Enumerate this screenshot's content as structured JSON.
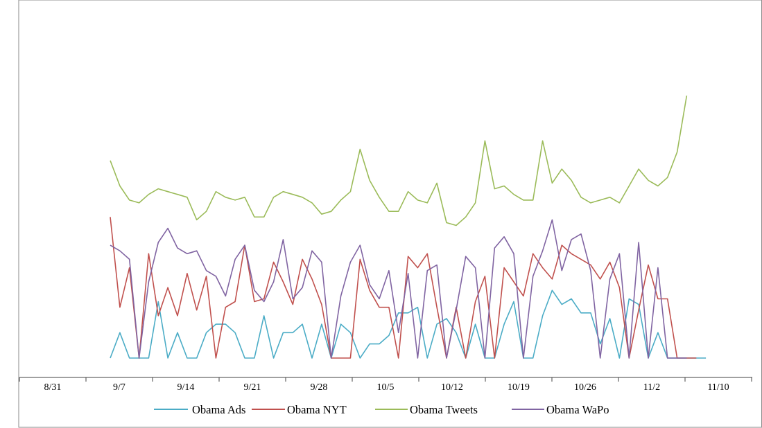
{
  "chart_data": {
    "type": "line",
    "title": "",
    "xlabel": "",
    "ylabel": "",
    "x_tick_labels": [
      "8/31",
      "9/7",
      "9/14",
      "9/21",
      "9/28",
      "10/5",
      "10/12",
      "10/19",
      "10/26",
      "11/2",
      "11/10"
    ],
    "x_start_label": "9/7",
    "x_step_days": 1,
    "ylim": [
      0,
      95
    ],
    "grid": false,
    "legend_position": "bottom",
    "series": [
      {
        "name": "Obama Ads",
        "color": "#4bacc6",
        "values": [
          0,
          9,
          0,
          0,
          0,
          20,
          0,
          9,
          0,
          0,
          9,
          12,
          12,
          9,
          0,
          0,
          15,
          0,
          9,
          9,
          12,
          0,
          12,
          0,
          12,
          9,
          0,
          5,
          5,
          8,
          16,
          16,
          18,
          0,
          12,
          14,
          9,
          0,
          12,
          0,
          0,
          12,
          20,
          0,
          0,
          15,
          24,
          19,
          21,
          16,
          16,
          5,
          14,
          0,
          21,
          19,
          0,
          9,
          0,
          0,
          0,
          0,
          0
        ]
      },
      {
        "name": "Obama NYT",
        "color": "#c0504d",
        "values": [
          50,
          18,
          32,
          0,
          37,
          15,
          25,
          15,
          30,
          17,
          29,
          0,
          18,
          20,
          40,
          20,
          21,
          34,
          27,
          19,
          35,
          28,
          19,
          0,
          0,
          0,
          35,
          24,
          18,
          18,
          0,
          36,
          32,
          37,
          18,
          0,
          18,
          0,
          20,
          29,
          0,
          32,
          27,
          22,
          37,
          32,
          28,
          40,
          37,
          35,
          33,
          28,
          34,
          25,
          0,
          17,
          33,
          21,
          21,
          0,
          0,
          0
        ]
      },
      {
        "name": "Obama Tweets",
        "color": "#9bbb59",
        "values": [
          70,
          61,
          56,
          55,
          58,
          60,
          59,
          58,
          57,
          49,
          52,
          59,
          57,
          56,
          57,
          50,
          50,
          57,
          59,
          58,
          57,
          55,
          51,
          52,
          56,
          59,
          74,
          63,
          57,
          52,
          52,
          59,
          56,
          55,
          62,
          48,
          47,
          50,
          55,
          77,
          60,
          61,
          58,
          56,
          56,
          77,
          62,
          67,
          63,
          57,
          55,
          56,
          57,
          55,
          61,
          67,
          63,
          61,
          64,
          73,
          93
        ]
      },
      {
        "name": "Obama WaPo",
        "color": "#8064a2",
        "values": [
          40,
          38,
          35,
          0,
          27,
          41,
          46,
          39,
          37,
          38,
          31,
          29,
          22,
          35,
          40,
          24,
          20,
          27,
          42,
          21,
          25,
          38,
          34,
          0,
          22,
          34,
          40,
          26,
          21,
          31,
          9,
          30,
          0,
          31,
          33,
          0,
          17,
          36,
          32,
          0,
          39,
          43,
          37,
          0,
          29,
          38,
          49,
          31,
          42,
          44,
          31,
          0,
          28,
          37,
          0,
          41,
          0,
          32,
          0,
          0,
          0
        ]
      }
    ]
  }
}
